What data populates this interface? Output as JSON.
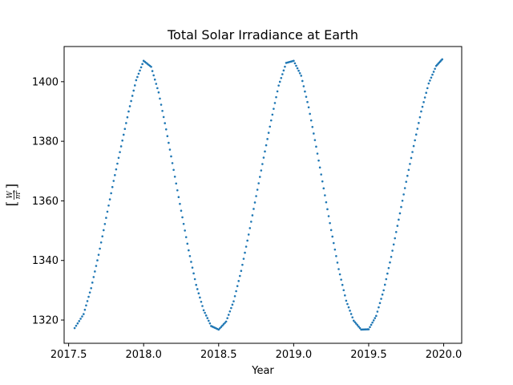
{
  "chart_data": {
    "type": "scatter",
    "title": "Total Solar Irradiance at Earth",
    "xlabel": "Year",
    "ylabel_numerator": "W",
    "ylabel_denominator": "m",
    "ylabel_exponent": "2",
    "xlim": [
      2017.47,
      2020.12
    ],
    "ylim": [
      1312.2,
      1411.8
    ],
    "xticks": [
      2017.5,
      2018.0,
      2018.5,
      2019.0,
      2019.5,
      2020.0
    ],
    "xtick_labels": [
      "2017.5",
      "2018.0",
      "2018.5",
      "2019.0",
      "2019.5",
      "2020.0"
    ],
    "yticks": [
      1320,
      1340,
      1360,
      1380,
      1400
    ],
    "ytick_labels": [
      "1320",
      "1340",
      "1360",
      "1380",
      "1400"
    ],
    "grid": false,
    "color": "#1f77b4",
    "series": [
      {
        "x": [
          2017.54,
          2017.6,
          2017.65,
          2017.7,
          2017.75,
          2017.8,
          2017.85,
          2017.9,
          2017.95,
          2018.0,
          2018.05,
          2018.1,
          2018.15,
          2018.2,
          2018.25,
          2018.3,
          2018.35,
          2018.4,
          2018.45,
          2018.5,
          2018.55,
          2018.6,
          2018.65,
          2018.7,
          2018.75,
          2018.8,
          2018.85,
          2018.9,
          2018.95,
          2019.0,
          2019.05,
          2019.1,
          2019.15,
          2019.2,
          2019.25,
          2019.3,
          2019.35,
          2019.4,
          2019.45,
          2019.5,
          2019.55,
          2019.6,
          2019.65,
          2019.7,
          2019.75,
          2019.8,
          2019.85,
          2019.9,
          2019.95,
          2019.99
        ],
        "y": [
          1317.3,
          1322.0,
          1330.7,
          1341.9,
          1354.3,
          1366.7,
          1378.3,
          1390.0,
          1400.5,
          1407.0,
          1405.0,
          1396.4,
          1384.0,
          1370.4,
          1356.7,
          1343.4,
          1331.8,
          1323.3,
          1318.0,
          1316.8,
          1319.5,
          1326.3,
          1336.5,
          1348.7,
          1361.6,
          1374.5,
          1387.0,
          1398.7,
          1406.3,
          1407.0,
          1402.0,
          1391.4,
          1378.2,
          1364.2,
          1350.2,
          1337.1,
          1326.5,
          1319.8,
          1316.8,
          1316.9,
          1321.4,
          1330.0,
          1341.2,
          1353.7,
          1366.4,
          1378.4,
          1390.0,
          1399.4,
          1405.3,
          1407.5
        ]
      }
    ]
  }
}
